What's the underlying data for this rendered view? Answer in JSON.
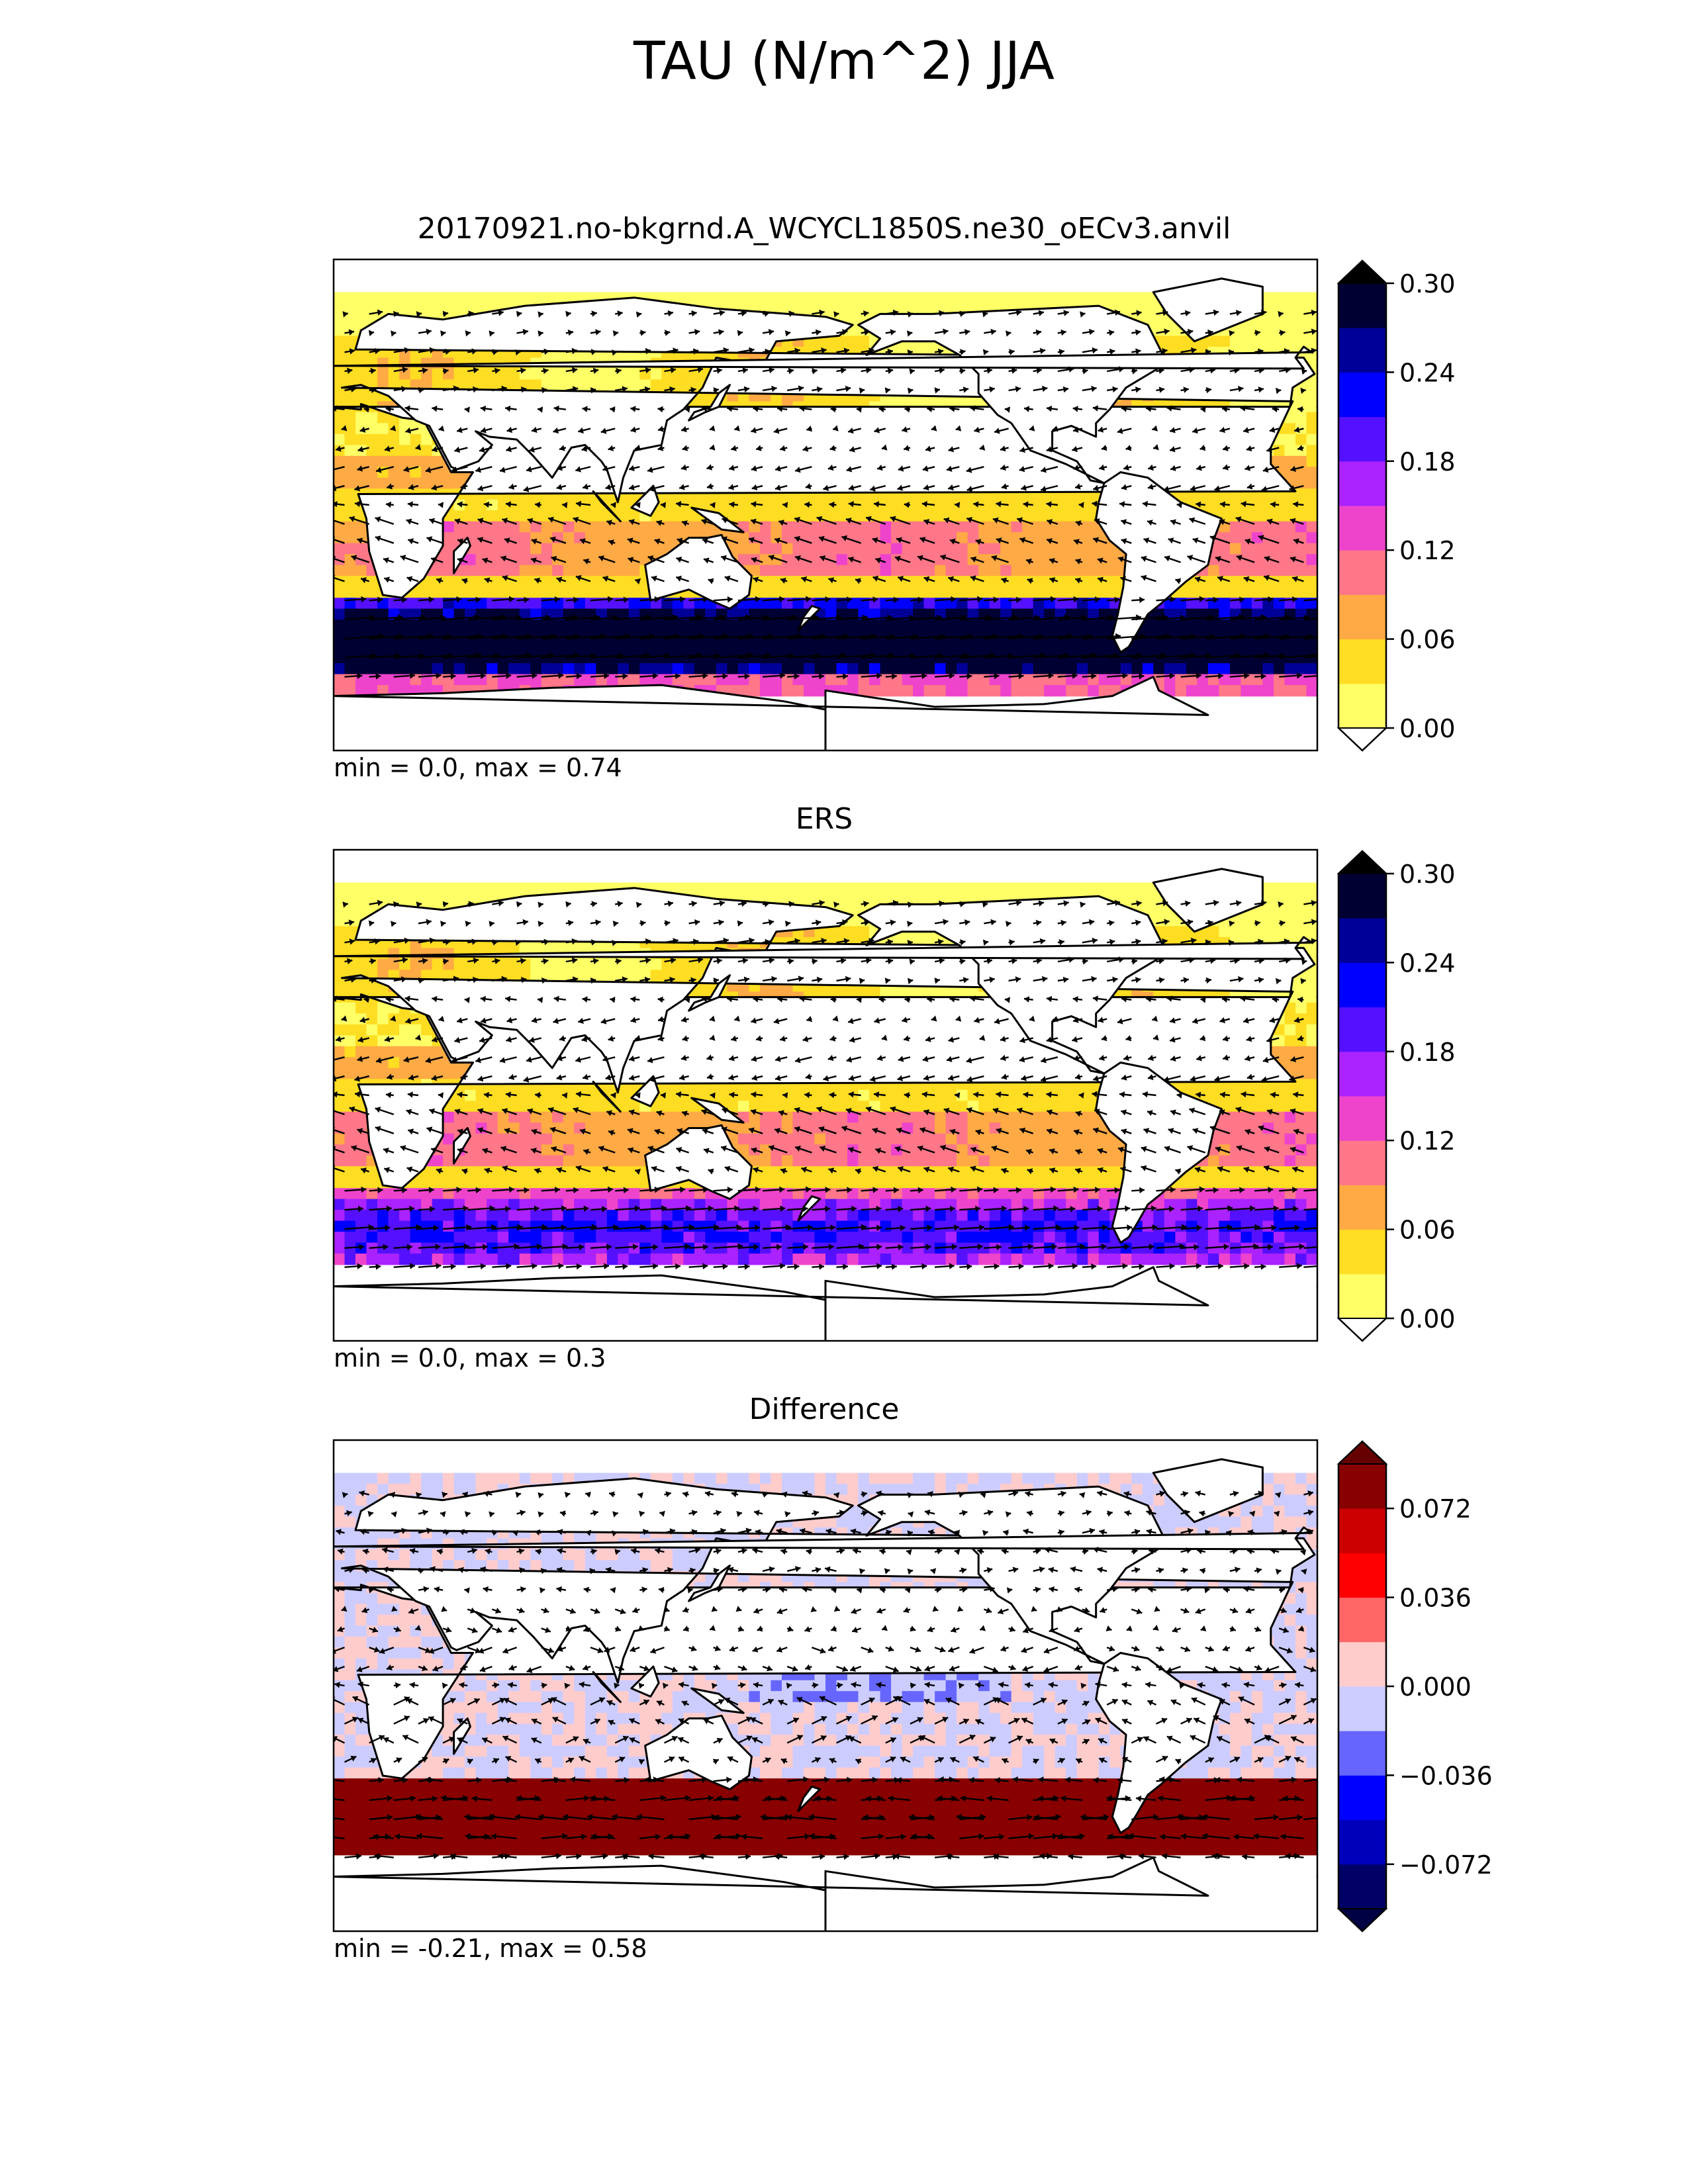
{
  "figure": {
    "title": "TAU (N/m^2) JJA"
  },
  "panels": [
    {
      "title": "20170921.no-bkgrnd.A_WCYCL1850S.ne30_oECv3.anvil",
      "stats": "min = 0.0, max = 0.74",
      "colorbar": {
        "ticks": [
          "0.00",
          "0.06",
          "0.12",
          "0.18",
          "0.24",
          "0.30"
        ],
        "tick_values": [
          0,
          0.06,
          0.12,
          0.18,
          0.24,
          0.3
        ],
        "levels": [
          0,
          0.03,
          0.06,
          0.09,
          0.12,
          0.15,
          0.18,
          0.21,
          0.24,
          0.27,
          0.3
        ],
        "colors": [
          "#ffff66",
          "#ffdd22",
          "#ffaa44",
          "#ff7788",
          "#ee44cc",
          "#aa22ff",
          "#5511ff",
          "#0000ff",
          "#000099",
          "#000033"
        ],
        "extend_low": "#ffffff",
        "extend_high": "#000000"
      }
    },
    {
      "title": "ERS",
      "stats": "min = 0.0, max = 0.3",
      "colorbar": {
        "ticks": [
          "0.00",
          "0.06",
          "0.12",
          "0.18",
          "0.24",
          "0.30"
        ],
        "tick_values": [
          0,
          0.06,
          0.12,
          0.18,
          0.24,
          0.3
        ],
        "levels": [
          0,
          0.03,
          0.06,
          0.09,
          0.12,
          0.15,
          0.18,
          0.21,
          0.24,
          0.27,
          0.3
        ],
        "colors": [
          "#ffff66",
          "#ffdd22",
          "#ffaa44",
          "#ff7788",
          "#ee44cc",
          "#aa22ff",
          "#5511ff",
          "#0000ff",
          "#000099",
          "#000033"
        ],
        "extend_low": "#ffffff",
        "extend_high": "#000000"
      }
    },
    {
      "title": "Difference",
      "stats": "min = -0.21, max = 0.58",
      "colorbar": {
        "ticks": [
          "−0.072",
          "−0.036",
          "0.000",
          "0.036",
          "0.072"
        ],
        "tick_values": [
          -0.072,
          -0.036,
          0,
          0.036,
          0.072
        ],
        "levels": [
          -0.09,
          -0.072,
          -0.054,
          -0.036,
          -0.018,
          0,
          0.018,
          0.036,
          0.054,
          0.072,
          0.09
        ],
        "colors": [
          "#000066",
          "#0000bb",
          "#0000ff",
          "#6666ff",
          "#ccccff",
          "#ffcccc",
          "#ff6666",
          "#ff0000",
          "#cc0000",
          "#880000"
        ],
        "extend_low": "#000044",
        "extend_high": "#660000"
      }
    }
  ],
  "chart_data": [
    {
      "type": "heatmap",
      "title": "20170921.no-bkgrnd.A_WCYCL1850S.ne30_oECv3.anvil",
      "value_min": 0.0,
      "value_max": 0.74,
      "colorbar_range": [
        0,
        0.3
      ],
      "map": "global map with wind stress vectors"
    },
    {
      "type": "heatmap",
      "title": "ERS",
      "value_min": 0.0,
      "value_max": 0.3,
      "colorbar_range": [
        0,
        0.3
      ],
      "map": "global map with wind stress vectors"
    },
    {
      "type": "heatmap",
      "title": "Difference",
      "value_min": -0.21,
      "value_max": 0.58,
      "colorbar_range": [
        -0.09,
        0.09
      ],
      "map": "global map with wind stress vectors"
    }
  ]
}
